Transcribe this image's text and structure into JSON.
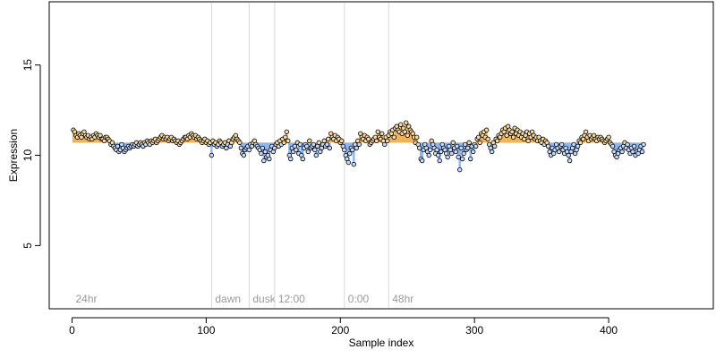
{
  "chart_data": {
    "type": "scatter",
    "title": "",
    "xlabel": "Sample index",
    "ylabel": "Expression",
    "xlim": [
      -17,
      478
    ],
    "ylim": [
      1.5,
      18.5
    ],
    "x_ticks": [
      0,
      100,
      200,
      300,
      400
    ],
    "y_ticks": [
      5,
      10,
      15
    ],
    "baseline": 10.7,
    "colors": {
      "above": "#f0b35a",
      "below": "#8fb6ec",
      "point_fill_above": "#f4d9a4",
      "point_fill_below": "#c6d9f6",
      "point_stroke": "#000000",
      "phase_line": "#d9d9d9",
      "phase_label": "#9a9a9a"
    },
    "phase_markers": [
      {
        "x": 0,
        "label": "24hr",
        "line": false
      },
      {
        "x": 104,
        "label": "dawn",
        "line": true
      },
      {
        "x": 132,
        "label": "dusk",
        "line": true
      },
      {
        "x": 151,
        "label": "12:00",
        "line": true
      },
      {
        "x": 203,
        "label": "0:00",
        "line": true
      },
      {
        "x": 236,
        "label": "48hr",
        "line": true
      }
    ],
    "series": [
      {
        "x_start": 1,
        "values": [
          11.4,
          11.3,
          11.1,
          11.0,
          11.2,
          11.1,
          11.0,
          11.2,
          11.3,
          11.1,
          11.0,
          11.1,
          10.9,
          11.0,
          10.9,
          11.1,
          11.0,
          11.2,
          11.1,
          11.0,
          11.1,
          10.9,
          10.9,
          10.8,
          11.0,
          11.0,
          10.9,
          10.8,
          10.6,
          10.7,
          10.5,
          10.4,
          10.3,
          10.5,
          10.2,
          10.3,
          10.6,
          10.4,
          10.2,
          10.3,
          10.4,
          10.5,
          10.4,
          10.5,
          10.6,
          10.5,
          10.6,
          10.7,
          10.5,
          10.6,
          10.7,
          10.6,
          10.5,
          10.7,
          10.6,
          10.8,
          10.7,
          10.6,
          10.8,
          10.7,
          10.8,
          10.9,
          10.7,
          10.8,
          10.9,
          11.0,
          11.1,
          10.9,
          11.0,
          10.9,
          11.0,
          10.8,
          10.9,
          11.0,
          10.8,
          10.9,
          10.8,
          10.7,
          10.8,
          10.6,
          10.7,
          10.8,
          10.9,
          11.0,
          11.0,
          10.9,
          11.1,
          11.0,
          11.2,
          11.1,
          11.0,
          11.1,
          10.9,
          11.0,
          10.9,
          10.8,
          10.7,
          10.8,
          10.9,
          10.7,
          10.8,
          10.6,
          10.7,
          10.0,
          10.8,
          10.6,
          10.7,
          10.5,
          10.6,
          10.8,
          10.7,
          10.5,
          10.6,
          10.7,
          10.4,
          10.6,
          10.8,
          10.5,
          10.7,
          10.9,
          11.0,
          11.1,
          10.9,
          10.8,
          10.7,
          10.4,
          10.1,
          10.0,
          10.3,
          10.4,
          10.5,
          10.3,
          10.6,
          10.5,
          10.7,
          10.8,
          10.6,
          10.5,
          10.4,
          10.3,
          10.1,
          10.4,
          9.7,
          10.2,
          9.9,
          10.0,
          9.8,
          10.3,
          10.5,
          10.2,
          10.4,
          10.6,
          10.7,
          10.5,
          10.8,
          10.6,
          10.9,
          10.7,
          11.0,
          11.3,
          10.8,
          10.0,
          9.8,
          10.4,
          10.2,
          10.5,
          10.3,
          10.7,
          10.1,
          10.6,
          10.0,
          9.8,
          10.4,
          10.6,
          10.5,
          10.2,
          10.8,
          10.4,
          10.5,
          10.6,
          10.3,
          10.0,
          10.5,
          10.7,
          10.2,
          10.4,
          10.6,
          10.8,
          10.5,
          10.6,
          10.9,
          10.4,
          11.2,
          11.0,
          10.9,
          11.1,
          10.8,
          11.0,
          10.9,
          10.7,
          10.8,
          10.5,
          10.3,
          10.0,
          9.8,
          9.6,
          10.1,
          10.4,
          10.3,
          9.5,
          10.6,
          10.4,
          10.8,
          10.6,
          11.2,
          11.0,
          10.9,
          11.1,
          10.8,
          11.0,
          10.9,
          10.6,
          10.7,
          10.8,
          10.9,
          11.0,
          10.8,
          11.3,
          11.0,
          10.9,
          11.2,
          10.8,
          10.6,
          11.0,
          10.8,
          11.1,
          11.3,
          11.2,
          11.4,
          11.0,
          11.5,
          11.6,
          11.4,
          11.3,
          11.7,
          11.2,
          11.5,
          11.3,
          11.8,
          11.1,
          11.6,
          11.4,
          11.3,
          11.2,
          11.0,
          10.7,
          11.0,
          10.6,
          10.4,
          9.8,
          9.7,
          10.3,
          10.6,
          10.4,
          10.2,
          10.0,
          10.3,
          10.8,
          10.6,
          10.4,
          10.1,
          10.3,
          10.0,
          9.7,
          10.2,
          10.6,
          10.4,
          10.3,
          10.1,
          9.9,
          10.5,
          10.3,
          10.1,
          10.7,
          10.4,
          10.2,
          10.5,
          9.9,
          9.2,
          10.4,
          9.8,
          10.1,
          10.6,
          10.3,
          10.4,
          10.7,
          9.8,
          10.5,
          10.2,
          10.6,
          10.5,
          10.9,
          11.0,
          10.7,
          11.2,
          11.1,
          11.3,
          11.0,
          11.4,
          10.9,
          10.6,
          10.4,
          10.2,
          10.7,
          10.5,
          10.9,
          10.8,
          11.1,
          11.0,
          11.2,
          11.4,
          11.3,
          11.5,
          11.1,
          11.6,
          11.4,
          11.2,
          11.3,
          11.0,
          11.5,
          11.2,
          11.4,
          11.1,
          11.3,
          11.0,
          11.2,
          10.9,
          11.1,
          11.3,
          10.8,
          11.2,
          11.0,
          11.3,
          11.1,
          10.9,
          11.0,
          10.8,
          11.0,
          10.8,
          10.7,
          10.9,
          10.6,
          10.8,
          10.7,
          10.5,
          10.2,
          10.0,
          10.4,
          10.1,
          10.3,
          10.6,
          10.4,
          10.2,
          10.5,
          10.6,
          10.3,
          10.1,
          10.4,
          10.2,
          10.0,
          9.7,
          10.2,
          10.4,
          10.6,
          10.1,
          10.3,
          10.5,
          10.8,
          10.7,
          11.0,
          10.9,
          11.1,
          11.3,
          11.0,
          10.8,
          11.1,
          10.9,
          11.0,
          11.1,
          10.9,
          10.8,
          11.0,
          10.9,
          11.0,
          10.9,
          10.8,
          10.7,
          10.8,
          10.9,
          11.0,
          10.7,
          10.6,
          10.5,
          10.2,
          10.0,
          9.9,
          10.1,
          10.3,
          10.4,
          10.2,
          10.5,
          10.7,
          10.4,
          10.6,
          10.3,
          10.1,
          10.4,
          10.2,
          10.5,
          10.0,
          10.2,
          10.1,
          10.3,
          10.5,
          10.2,
          10.6
        ]
      }
    ]
  }
}
